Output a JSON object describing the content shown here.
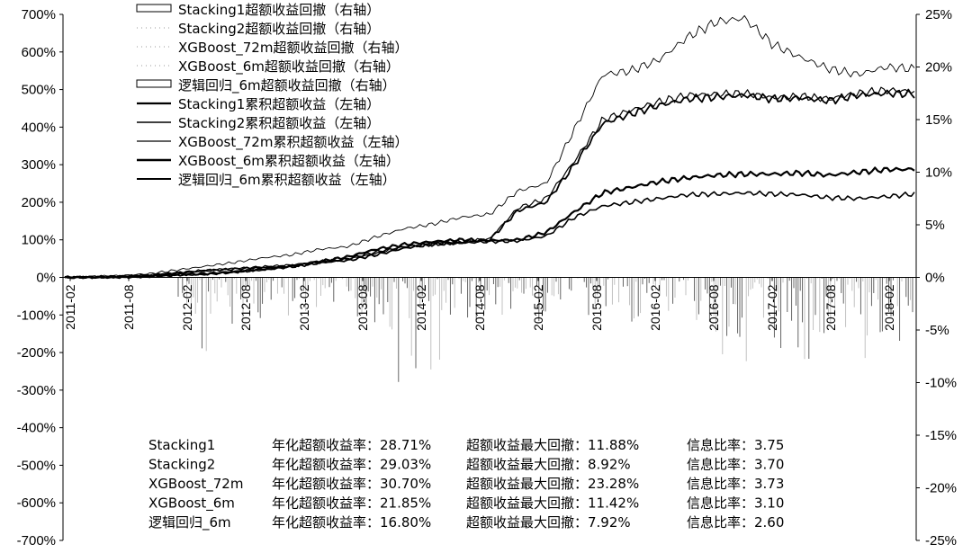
{
  "chart_data": {
    "type": "line",
    "title": "",
    "xlabel": "",
    "ylabel": "",
    "ylim_left": [
      -700,
      700
    ],
    "ylim_right": [
      -25,
      25
    ],
    "yticks_left": [
      "700%",
      "600%",
      "500%",
      "400%",
      "300%",
      "200%",
      "100%",
      "0%",
      "-100%",
      "-200%",
      "-300%",
      "-400%",
      "-500%",
      "-600%",
      "-700%"
    ],
    "yticks_right": [
      "25%",
      "20%",
      "15%",
      "10%",
      "5%",
      "0%",
      "-5%",
      "-10%",
      "-15%",
      "-20%",
      "-25%"
    ],
    "x_labels": [
      "2011-02",
      "2011-08",
      "2012-02",
      "2012-08",
      "2013-02",
      "2013-08",
      "2014-02",
      "2014-08",
      "2015-02",
      "2015-08",
      "2016-02",
      "2016-08",
      "2017-02",
      "2017-08",
      "2018-02"
    ],
    "legend_placement": "top-left",
    "legend": [
      "Stacking1超额收益回撤（右轴）",
      "Stacking2超额收益回撤（右轴）",
      "XGBoost_72m超额收益回撤（右轴）",
      "XGBoost_6m超额收益回撤（右轴）",
      "逻辑回归_6m超额收益回撤（右轴）",
      "Stacking1累积超额收益（左轴）",
      "Stacking2累积超额收益（左轴）",
      "XGBoost_72m累积超额收益（左轴）",
      "XGBoost_6m累积超额收益（左轴）",
      "逻辑回归_6m累积超额收益（左轴）"
    ],
    "cumulative_axis": "left",
    "drawdown_axis": "right",
    "series": [
      {
        "name": "Stacking1累积超额收益（左轴）",
        "color": "#000000",
        "width": 1.8,
        "values": [
          0,
          1,
          3,
          5,
          12,
          18,
          22,
          27,
          30,
          40,
          45,
          60,
          78,
          88,
          92,
          100,
          178,
          200,
          300,
          410,
          435,
          458,
          475,
          480,
          485,
          475,
          478,
          470,
          485,
          490,
          488
        ]
      },
      {
        "name": "Stacking2累积超额收益（左轴）",
        "color": "#000000",
        "width": 1.2,
        "values": [
          0,
          1,
          3,
          6,
          13,
          19,
          24,
          28,
          33,
          43,
          48,
          64,
          82,
          93,
          96,
          102,
          185,
          210,
          310,
          420,
          445,
          468,
          485,
          488,
          490,
          478,
          482,
          475,
          490,
          498,
          495
        ]
      },
      {
        "name": "XGBoost_72m累积超额收益（左轴）",
        "color": "#000000",
        "width": 0.9,
        "values": [
          0,
          2,
          5,
          10,
          20,
          30,
          40,
          52,
          60,
          75,
          82,
          108,
          130,
          142,
          160,
          168,
          230,
          250,
          395,
          540,
          550,
          580,
          640,
          680,
          690,
          620,
          585,
          555,
          540,
          560,
          555
        ]
      },
      {
        "name": "XGBoost_6m累积超额收益（左轴）",
        "color": "#000000",
        "width": 2.2,
        "values": [
          0,
          0,
          1,
          3,
          8,
          10,
          15,
          22,
          30,
          42,
          55,
          75,
          88,
          95,
          100,
          98,
          100,
          120,
          175,
          225,
          240,
          255,
          265,
          272,
          275,
          275,
          278,
          272,
          280,
          287,
          288
        ]
      },
      {
        "name": "逻辑回归_6m累积超额收益（左轴）",
        "color": "#000000",
        "width": 1.6,
        "values": [
          0,
          0,
          1,
          2,
          6,
          8,
          14,
          20,
          28,
          38,
          50,
          68,
          82,
          88,
          92,
          95,
          97,
          110,
          160,
          190,
          200,
          210,
          220,
          222,
          225,
          222,
          220,
          212,
          210,
          215,
          222
        ]
      }
    ],
    "drawdown_band_start": "2012-02",
    "drawdown_min_approx": [
      -11.88,
      -8.92,
      -23.28,
      -11.42,
      -7.92
    ]
  },
  "stats": {
    "rows": [
      {
        "name": "Stacking1",
        "annual": "年化超额收益率：28.71%",
        "maxdd": "超额收益最大回撤：11.88%",
        "ir": "信息比率：3.75"
      },
      {
        "name": "Stacking2",
        "annual": "年化超额收益率：29.03%",
        "maxdd": "超额收益最大回撤：8.92%",
        "ir": "信息比率：3.70"
      },
      {
        "name": "XGBoost_72m",
        "annual": "年化超额收益率：30.70%",
        "maxdd": "超额收益最大回撤：23.28%",
        "ir": "信息比率：3.73"
      },
      {
        "name": "XGBoost_6m",
        "annual": "年化超额收益率：21.85%",
        "maxdd": "超额收益最大回撤：11.42%",
        "ir": "信息比率：3.10"
      },
      {
        "name": "逻辑回归_6m",
        "annual": "年化超额收益率：16.80%",
        "maxdd": "超额收益最大回撤：7.92%",
        "ir": "信息比率：2.60"
      }
    ]
  }
}
